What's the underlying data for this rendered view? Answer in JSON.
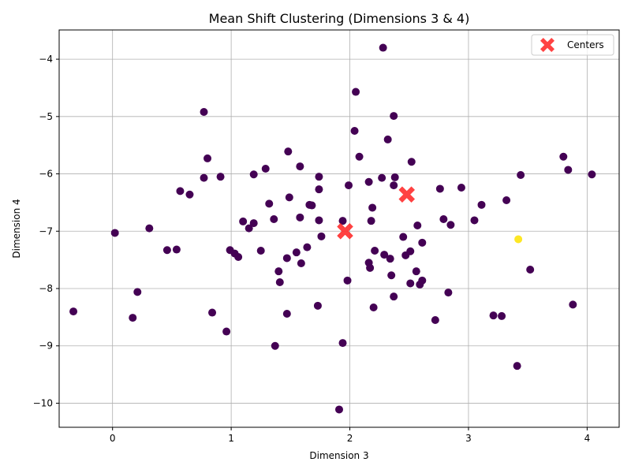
{
  "chart_data": {
    "type": "scatter",
    "title": "Mean Shift Clustering (Dimensions 3 & 4)",
    "xlabel": "Dimension 3",
    "ylabel": "Dimension 4",
    "xlim": [
      -0.45,
      4.27
    ],
    "ylim": [
      -10.42,
      -3.49
    ],
    "xticks": [
      0,
      1,
      2,
      3,
      4
    ],
    "yticks": [
      -10,
      -9,
      -8,
      -7,
      -6,
      -5,
      -4
    ],
    "grid": true,
    "legend": {
      "placement": "top-right",
      "entries": [
        "Centers"
      ]
    },
    "colors": {
      "cluster_0": "#440154",
      "cluster_1": "#fde725",
      "centers": "#ff2d2d"
    },
    "series": [
      {
        "cluster": 0,
        "points": [
          [
            -0.33,
            -8.4
          ],
          [
            0.02,
            -7.03
          ],
          [
            0.17,
            -8.51
          ],
          [
            0.21,
            -8.06
          ],
          [
            0.31,
            -6.95
          ],
          [
            0.46,
            -7.33
          ],
          [
            0.54,
            -7.32
          ],
          [
            0.57,
            -6.3
          ],
          [
            0.65,
            -6.36
          ],
          [
            0.77,
            -4.92
          ],
          [
            0.77,
            -6.07
          ],
          [
            0.8,
            -5.73
          ],
          [
            0.84,
            -8.42
          ],
          [
            0.91,
            -6.05
          ],
          [
            0.96,
            -8.75
          ],
          [
            0.99,
            -7.33
          ],
          [
            1.03,
            -7.39
          ],
          [
            1.06,
            -7.45
          ],
          [
            1.1,
            -6.83
          ],
          [
            1.15,
            -6.95
          ],
          [
            1.19,
            -6.86
          ],
          [
            1.19,
            -6.01
          ],
          [
            1.25,
            -7.34
          ],
          [
            1.29,
            -5.91
          ],
          [
            1.32,
            -6.52
          ],
          [
            1.36,
            -6.79
          ],
          [
            1.37,
            -9.0
          ],
          [
            1.4,
            -7.7
          ],
          [
            1.41,
            -7.89
          ],
          [
            1.47,
            -7.47
          ],
          [
            1.47,
            -8.44
          ],
          [
            1.48,
            -5.61
          ],
          [
            1.49,
            -6.41
          ],
          [
            1.55,
            -7.37
          ],
          [
            1.58,
            -5.87
          ],
          [
            1.58,
            -6.76
          ],
          [
            1.59,
            -7.56
          ],
          [
            1.64,
            -7.28
          ],
          [
            1.66,
            -6.54
          ],
          [
            1.68,
            -6.55
          ],
          [
            1.73,
            -8.3
          ],
          [
            1.74,
            -6.81
          ],
          [
            1.74,
            -6.27
          ],
          [
            1.74,
            -6.05
          ],
          [
            1.76,
            -7.09
          ],
          [
            1.91,
            -10.11
          ],
          [
            1.94,
            -8.95
          ],
          [
            1.94,
            -6.82
          ],
          [
            1.98,
            -7.86
          ],
          [
            1.99,
            -6.2
          ],
          [
            2.04,
            -5.25
          ],
          [
            2.05,
            -4.57
          ],
          [
            2.08,
            -5.7
          ],
          [
            2.16,
            -7.55
          ],
          [
            2.16,
            -6.14
          ],
          [
            2.17,
            -7.64
          ],
          [
            2.18,
            -6.82
          ],
          [
            2.19,
            -6.59
          ],
          [
            2.2,
            -8.33
          ],
          [
            2.21,
            -7.34
          ],
          [
            2.27,
            -6.07
          ],
          [
            2.28,
            -3.8
          ],
          [
            2.29,
            -7.41
          ],
          [
            2.32,
            -5.4
          ],
          [
            2.34,
            -7.48
          ],
          [
            2.35,
            -7.77
          ],
          [
            2.37,
            -8.14
          ],
          [
            2.37,
            -6.2
          ],
          [
            2.37,
            -4.99
          ],
          [
            2.38,
            -6.06
          ],
          [
            2.45,
            -7.1
          ],
          [
            2.47,
            -7.42
          ],
          [
            2.51,
            -7.35
          ],
          [
            2.51,
            -7.91
          ],
          [
            2.52,
            -5.79
          ],
          [
            2.56,
            -7.7
          ],
          [
            2.57,
            -6.9
          ],
          [
            2.59,
            -7.93
          ],
          [
            2.61,
            -7.86
          ],
          [
            2.61,
            -7.2
          ],
          [
            2.72,
            -8.55
          ],
          [
            2.76,
            -6.26
          ],
          [
            2.79,
            -6.79
          ],
          [
            2.83,
            -8.07
          ],
          [
            2.85,
            -6.89
          ],
          [
            2.94,
            -6.24
          ],
          [
            3.05,
            -6.81
          ],
          [
            3.11,
            -6.54
          ],
          [
            3.21,
            -8.47
          ],
          [
            3.28,
            -8.48
          ],
          [
            3.32,
            -6.46
          ],
          [
            3.41,
            -9.35
          ],
          [
            3.44,
            -6.02
          ],
          [
            3.52,
            -7.67
          ],
          [
            3.8,
            -5.7
          ],
          [
            3.84,
            -5.93
          ],
          [
            3.88,
            -8.28
          ],
          [
            4.04,
            -6.01
          ]
        ]
      },
      {
        "cluster": 1,
        "points": [
          [
            3.42,
            -7.14
          ]
        ]
      }
    ],
    "centers": [
      [
        1.96,
        -7.0
      ],
      [
        2.48,
        -6.36
      ]
    ]
  }
}
